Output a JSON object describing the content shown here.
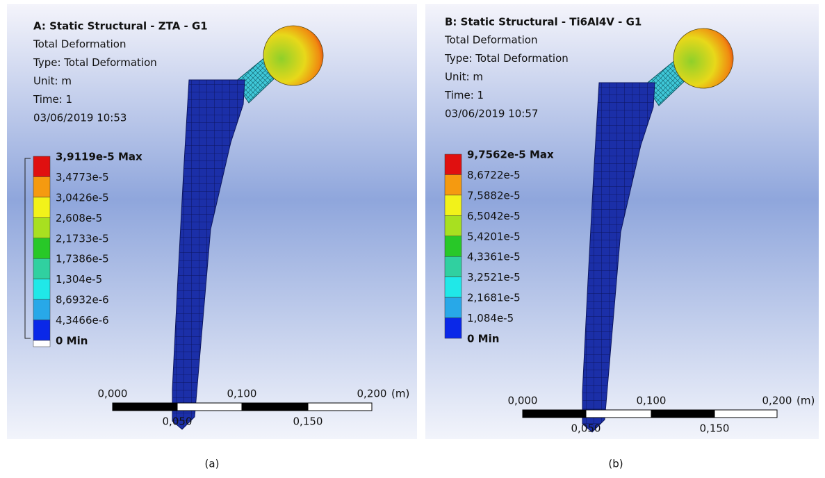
{
  "panels": [
    {
      "header": {
        "title": "A: Static Structural - ZTA - G1",
        "lines": [
          "Total Deformation",
          "Type: Total Deformation",
          "Unit: m",
          "Time: 1",
          "03/06/2019 10:53"
        ]
      },
      "legend": [
        "3,9119e-5 Max",
        "3,4773e-5",
        "3,0426e-5",
        "2,608e-5",
        "2,1733e-5",
        "1,7386e-5",
        "1,304e-5",
        "8,6932e-6",
        "4,3466e-6",
        "0 Min"
      ],
      "scale": {
        "top": [
          "0,000",
          "0,100",
          "0,200"
        ],
        "bottom": [
          "0,050",
          "0,150"
        ],
        "unit": "(m)"
      },
      "caption": "(a)"
    },
    {
      "header": {
        "title": "B: Static Structural - Ti6Al4V - G1",
        "lines": [
          "Total Deformation",
          "Type: Total Deformation",
          "Unit: m",
          "Time: 1",
          "03/06/2019 10:57"
        ]
      },
      "legend": [
        "9,7562e-5 Max",
        "8,6722e-5",
        "7,5882e-5",
        "6,5042e-5",
        "5,4201e-5",
        "4,3361e-5",
        "3,2521e-5",
        "2,1681e-5",
        "1,084e-5",
        "0 Min"
      ],
      "scale": {
        "top": [
          "0,000",
          "0,100",
          "0,200"
        ],
        "bottom": [
          "0,050",
          "0,150"
        ],
        "unit": "(m)"
      },
      "caption": "(b)"
    }
  ]
}
